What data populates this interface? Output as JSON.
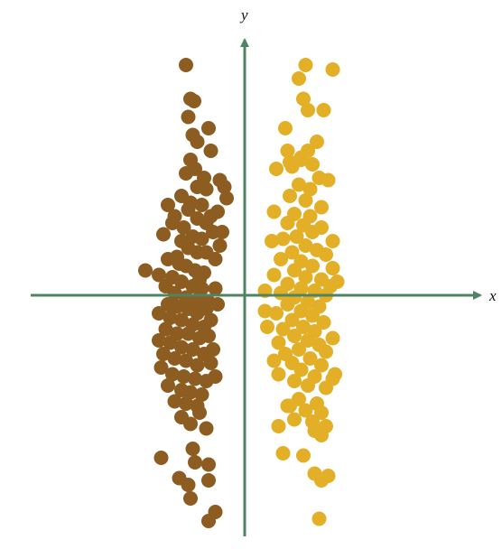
{
  "chart_data": {
    "type": "scatter",
    "title": "",
    "xlabel": "x",
    "ylabel": "y",
    "xlim": [
      -5.5,
      5.5
    ],
    "ylim": [
      -5.4,
      5.9
    ],
    "grid": false,
    "legend": "none",
    "axis_color": "#4f8463",
    "series": [
      {
        "color": "#8c5c20",
        "points": [
          [
            -1.3,
            5.1
          ],
          [
            -1.2,
            4.35
          ],
          [
            -1.12,
            4.3
          ],
          [
            -1.25,
            3.95
          ],
          [
            -0.8,
            3.7
          ],
          [
            -1.15,
            3.55
          ],
          [
            -1.05,
            3.4
          ],
          [
            -0.75,
            3.2
          ],
          [
            -1.2,
            3.0
          ],
          [
            -1.1,
            2.8
          ],
          [
            -0.9,
            2.6
          ],
          [
            -1.3,
            2.7
          ],
          [
            -1.05,
            2.4
          ],
          [
            -0.85,
            2.35
          ],
          [
            -1.4,
            2.2
          ],
          [
            -1.7,
            2.0
          ],
          [
            -1.2,
            2.05
          ],
          [
            -0.95,
            2.0
          ],
          [
            -0.6,
            1.85
          ],
          [
            -1.55,
            1.75
          ],
          [
            -1.05,
            1.7
          ],
          [
            -0.85,
            1.6
          ],
          [
            -0.7,
            1.4
          ],
          [
            -0.75,
            1.75
          ],
          [
            -1.6,
            1.6
          ],
          [
            -1.35,
            1.5
          ],
          [
            -1.15,
            1.3
          ],
          [
            -0.95,
            1.25
          ],
          [
            -0.55,
            1.1
          ],
          [
            -1.8,
            1.35
          ],
          [
            -1.4,
            1.2
          ],
          [
            -1.25,
            1.05
          ],
          [
            -1.05,
            0.95
          ],
          [
            -0.85,
            0.95
          ],
          [
            -0.65,
            0.8
          ],
          [
            -1.7,
            0.8
          ],
          [
            -1.5,
            0.85
          ],
          [
            -1.3,
            0.65
          ],
          [
            -1.1,
            0.55
          ],
          [
            -0.9,
            0.5
          ],
          [
            -1.6,
            0.4
          ],
          [
            -1.4,
            0.3
          ],
          [
            -1.15,
            0.2
          ],
          [
            -0.95,
            0.15
          ],
          [
            -1.75,
            0.2
          ],
          [
            -1.55,
            0.05
          ],
          [
            -1.3,
            -0.05
          ],
          [
            -1.05,
            -0.1
          ],
          [
            -0.8,
            -0.15
          ],
          [
            -2.2,
            0.55
          ],
          [
            -1.9,
            0.45
          ],
          [
            -1.7,
            -0.2
          ],
          [
            -1.5,
            -0.25
          ],
          [
            -1.25,
            -0.3
          ],
          [
            -1.05,
            -0.4
          ],
          [
            -0.85,
            -0.3
          ],
          [
            -1.9,
            -0.4
          ],
          [
            -1.65,
            -0.5
          ],
          [
            -1.4,
            -0.55
          ],
          [
            -1.15,
            -0.65
          ],
          [
            -0.9,
            -0.7
          ],
          [
            -1.75,
            -0.75
          ],
          [
            -1.5,
            -0.85
          ],
          [
            -1.25,
            -0.85
          ],
          [
            -1.0,
            -0.95
          ],
          [
            -0.8,
            -0.9
          ],
          [
            -1.9,
            -1.0
          ],
          [
            -1.65,
            -1.05
          ],
          [
            -1.4,
            -1.15
          ],
          [
            -1.15,
            -1.2
          ],
          [
            -0.9,
            -1.3
          ],
          [
            -1.8,
            -1.3
          ],
          [
            -1.55,
            -1.4
          ],
          [
            -1.3,
            -1.45
          ],
          [
            -1.05,
            -1.55
          ],
          [
            -0.75,
            -1.5
          ],
          [
            -1.85,
            -1.6
          ],
          [
            -1.6,
            -1.75
          ],
          [
            -1.35,
            -1.8
          ],
          [
            -1.1,
            -1.85
          ],
          [
            -0.85,
            -1.9
          ],
          [
            -1.7,
            -2.0
          ],
          [
            -1.4,
            -2.1
          ],
          [
            -1.2,
            -2.15
          ],
          [
            -0.95,
            -2.2
          ],
          [
            -1.55,
            -2.35
          ],
          [
            -1.3,
            -2.4
          ],
          [
            -1.05,
            -2.45
          ],
          [
            -1.4,
            -2.7
          ],
          [
            -1.2,
            -2.85
          ],
          [
            -0.85,
            -2.95
          ],
          [
            -1.0,
            -2.6
          ],
          [
            -0.65,
            -1.8
          ],
          [
            -0.7,
            -1.2
          ],
          [
            -0.75,
            -0.55
          ],
          [
            -0.65,
            0.15
          ],
          [
            -0.5,
            1.4
          ],
          [
            -0.4,
            2.15
          ],
          [
            -0.45,
            2.4
          ],
          [
            -0.55,
            2.55
          ],
          [
            -1.25,
            1.9
          ],
          [
            -1.45,
            0.7
          ],
          [
            -1.0,
            0.35
          ],
          [
            -0.6,
            -0.2
          ],
          [
            -1.85,
            -3.6
          ],
          [
            -1.15,
            -3.4
          ],
          [
            -1.1,
            -3.7
          ],
          [
            -0.8,
            -3.75
          ],
          [
            -1.45,
            -4.05
          ],
          [
            -0.8,
            -4.1
          ],
          [
            -1.25,
            -4.2
          ],
          [
            -1.2,
            -4.5
          ],
          [
            -0.65,
            -4.8
          ],
          [
            -0.8,
            -5.0
          ]
        ]
      },
      {
        "color": "#e2af26",
        "points": [
          [
            1.35,
            5.1
          ],
          [
            1.2,
            4.8
          ],
          [
            1.95,
            5.0
          ],
          [
            1.3,
            4.35
          ],
          [
            1.4,
            4.1
          ],
          [
            1.75,
            4.1
          ],
          [
            0.9,
            3.7
          ],
          [
            1.6,
            3.4
          ],
          [
            1.4,
            3.2
          ],
          [
            1.25,
            3.0
          ],
          [
            1.5,
            2.9
          ],
          [
            0.7,
            2.8
          ],
          [
            1.05,
            2.85
          ],
          [
            1.65,
            2.6
          ],
          [
            1.85,
            2.55
          ],
          [
            1.2,
            2.45
          ],
          [
            1.45,
            2.35
          ],
          [
            1.0,
            2.2
          ],
          [
            1.35,
            2.1
          ],
          [
            0.65,
            1.85
          ],
          [
            1.7,
            1.95
          ],
          [
            1.1,
            1.8
          ],
          [
            1.45,
            1.75
          ],
          [
            0.95,
            1.6
          ],
          [
            1.3,
            1.55
          ],
          [
            1.7,
            1.5
          ],
          [
            1.5,
            1.4
          ],
          [
            1.15,
            1.3
          ],
          [
            0.85,
            1.25
          ],
          [
            1.95,
            1.2
          ],
          [
            1.35,
            1.1
          ],
          [
            1.6,
            1.0
          ],
          [
            1.05,
            0.95
          ],
          [
            1.8,
            0.9
          ],
          [
            0.8,
            0.8
          ],
          [
            1.25,
            0.75
          ],
          [
            1.5,
            0.65
          ],
          [
            1.95,
            0.6
          ],
          [
            1.1,
            0.55
          ],
          [
            0.65,
            0.45
          ],
          [
            1.35,
            0.4
          ],
          [
            1.7,
            0.35
          ],
          [
            2.05,
            0.3
          ],
          [
            0.95,
            0.25
          ],
          [
            1.25,
            0.15
          ],
          [
            1.55,
            0.1
          ],
          [
            0.8,
            0.05
          ],
          [
            1.8,
            0.0
          ],
          [
            1.1,
            -0.05
          ],
          [
            0.45,
            0.1
          ],
          [
            1.4,
            -0.15
          ],
          [
            0.95,
            -0.2
          ],
          [
            1.65,
            -0.25
          ],
          [
            1.25,
            -0.35
          ],
          [
            0.7,
            -0.4
          ],
          [
            1.5,
            -0.45
          ],
          [
            1.05,
            -0.55
          ],
          [
            1.75,
            -0.6
          ],
          [
            1.3,
            -0.7
          ],
          [
            0.85,
            -0.75
          ],
          [
            1.55,
            -0.8
          ],
          [
            1.1,
            -0.9
          ],
          [
            1.95,
            -0.95
          ],
          [
            1.4,
            -1.0
          ],
          [
            0.75,
            -1.05
          ],
          [
            1.65,
            -1.1
          ],
          [
            1.2,
            -1.2
          ],
          [
            1.8,
            -1.25
          ],
          [
            0.9,
            -1.3
          ],
          [
            1.45,
            -1.4
          ],
          [
            1.05,
            -1.5
          ],
          [
            1.7,
            -1.55
          ],
          [
            1.25,
            -1.65
          ],
          [
            0.75,
            -1.75
          ],
          [
            1.55,
            -1.8
          ],
          [
            1.95,
            -1.85
          ],
          [
            1.1,
            -1.9
          ],
          [
            1.4,
            -2.0
          ],
          [
            1.8,
            -2.05
          ],
          [
            1.2,
            -2.3
          ],
          [
            1.6,
            -2.4
          ],
          [
            0.95,
            -2.45
          ],
          [
            1.35,
            -2.55
          ],
          [
            1.7,
            -2.6
          ],
          [
            1.1,
            -2.75
          ],
          [
            1.5,
            -2.8
          ],
          [
            1.8,
            -2.9
          ],
          [
            0.75,
            -2.9
          ],
          [
            1.0,
            -2.45
          ],
          [
            1.55,
            -3.0
          ],
          [
            1.7,
            -3.1
          ],
          [
            0.85,
            -3.5
          ],
          [
            1.3,
            -3.55
          ],
          [
            1.55,
            -3.95
          ],
          [
            1.7,
            -4.1
          ],
          [
            1.85,
            -4.0
          ],
          [
            1.65,
            -4.95
          ],
          [
            0.45,
            -0.35
          ],
          [
            0.5,
            -0.7
          ],
          [
            1.9,
            0.2
          ],
          [
            0.6,
            1.2
          ],
          [
            1.0,
            2.95
          ],
          [
            0.95,
            3.2
          ],
          [
            1.25,
            3.05
          ],
          [
            2.0,
            -1.75
          ],
          [
            0.65,
            -1.45
          ]
        ]
      }
    ]
  }
}
